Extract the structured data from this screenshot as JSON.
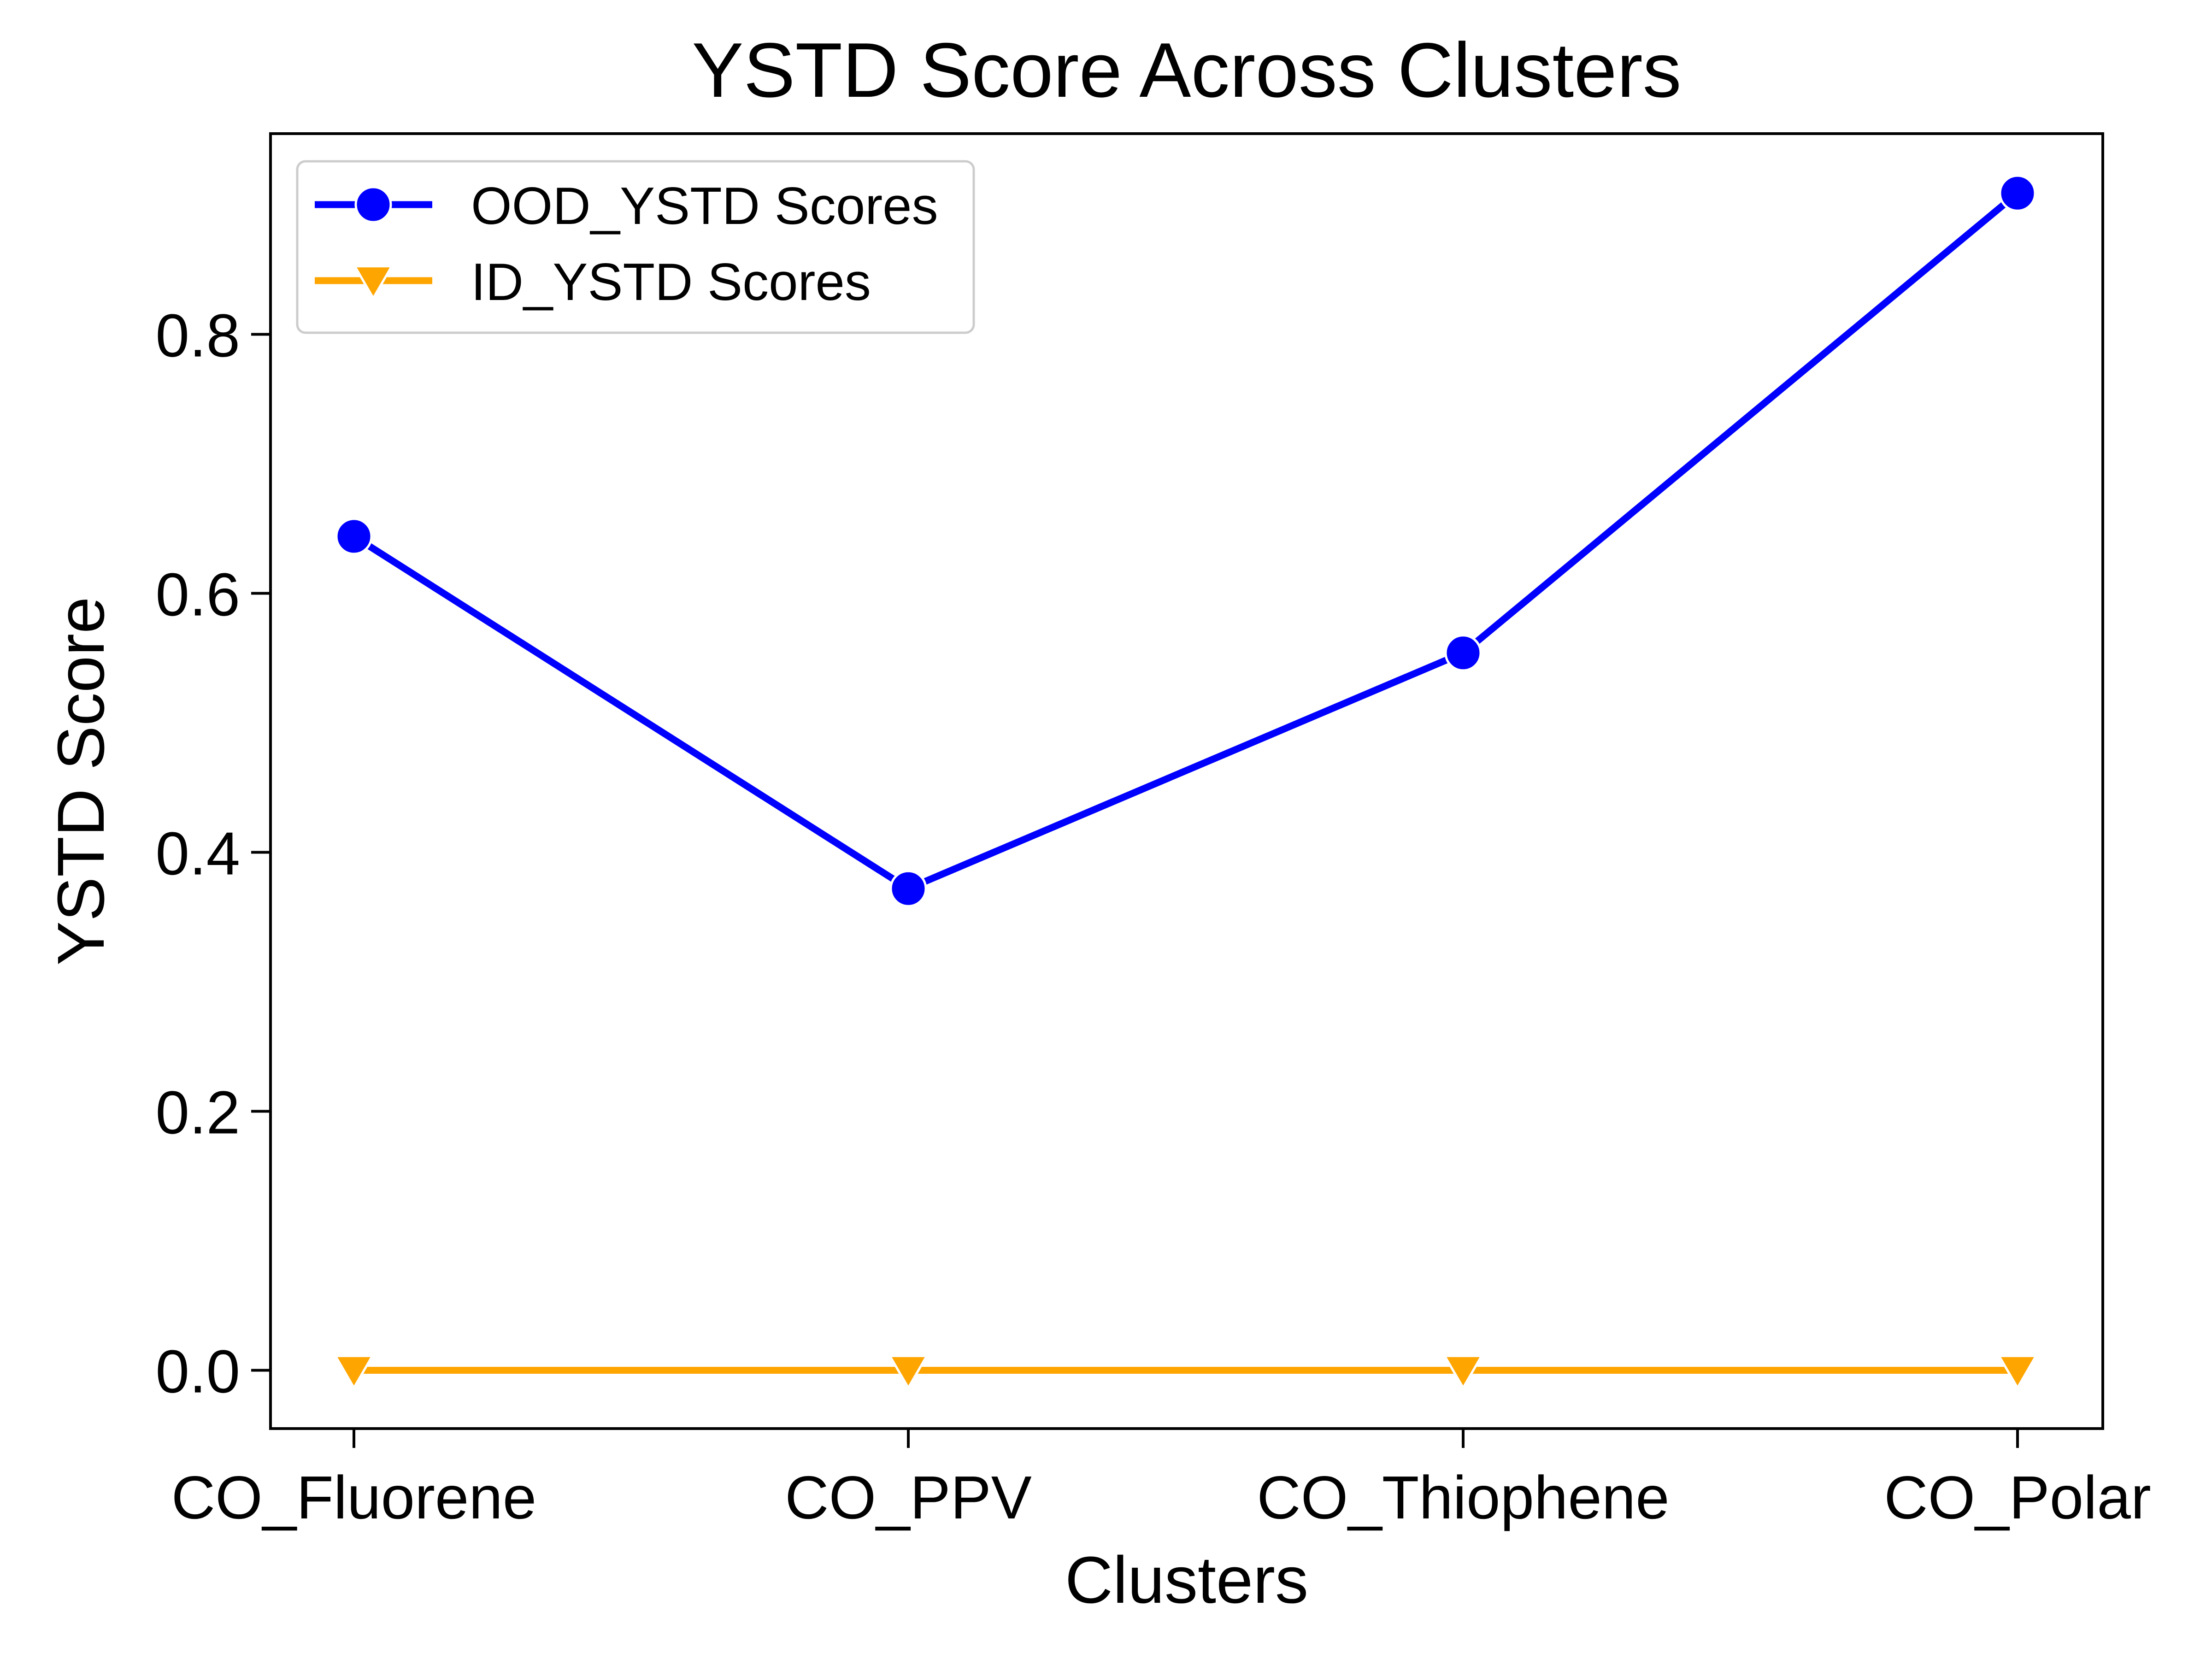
{
  "chart_data": {
    "type": "line",
    "title": "YSTD Score Across Clusters",
    "xlabel": "Clusters",
    "ylabel": "YSTD Score",
    "categories": [
      "CO_Fluorene",
      "CO_PPV",
      "CO_Thiophene",
      "CO_Polar"
    ],
    "ylim": [
      -0.045,
      0.955
    ],
    "yticks": [
      0.0,
      0.2,
      0.4,
      0.6,
      0.8
    ],
    "ytick_labels": [
      "0.0",
      "0.2",
      "0.4",
      "0.6",
      "0.8"
    ],
    "grid": false,
    "legend_position": "top-left",
    "series": [
      {
        "name": "OOD_YSTD Scores",
        "values": [
          0.644,
          0.372,
          0.554,
          0.909
        ],
        "color": "#0000ff",
        "marker": "circle"
      },
      {
        "name": "ID_YSTD Scores",
        "values": [
          0.0,
          0.0,
          0.0,
          0.0
        ],
        "color": "#ffa500",
        "marker": "triangle-down"
      }
    ]
  }
}
